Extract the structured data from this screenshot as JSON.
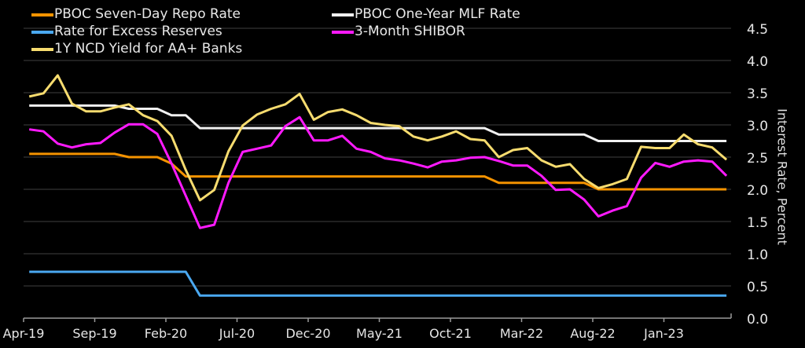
{
  "chart_data": {
    "type": "line",
    "title": "",
    "xlabel": "",
    "ylabel": "Interest Rate, Percent",
    "y_axis_side": "right",
    "ylim": [
      0,
      4.5
    ],
    "yticks": [
      "0.0",
      "0.5",
      "1.0",
      "1.5",
      "2.0",
      "2.5",
      "3.0",
      "3.5",
      "4.0",
      "4.5"
    ],
    "xtick_labels": [
      "Apr-19",
      "Sep-19",
      "Feb-20",
      "Jul-20",
      "Dec-20",
      "May-21",
      "Oct-21",
      "Mar-22",
      "Aug-22",
      "Jan-23"
    ],
    "grid": "horizontal",
    "legend_position": "top",
    "background": "#000000",
    "x": [
      "Apr-19",
      "May-19",
      "Jun-19",
      "Jul-19",
      "Aug-19",
      "Sep-19",
      "Oct-19",
      "Nov-19",
      "Dec-19",
      "Jan-20",
      "Feb-20",
      "Mar-20",
      "Apr-20",
      "May-20",
      "Jun-20",
      "Jul-20",
      "Aug-20",
      "Sep-20",
      "Oct-20",
      "Nov-20",
      "Dec-20",
      "Jan-21",
      "Feb-21",
      "Mar-21",
      "Apr-21",
      "May-21",
      "Jun-21",
      "Jul-21",
      "Aug-21",
      "Sep-21",
      "Oct-21",
      "Nov-21",
      "Dec-21",
      "Jan-22",
      "Feb-22",
      "Mar-22",
      "Apr-22",
      "May-22",
      "Jun-22",
      "Jul-22",
      "Aug-22",
      "Sep-22",
      "Oct-22",
      "Nov-22",
      "Dec-22",
      "Jan-23",
      "Feb-23",
      "Mar-23",
      "Apr-23",
      "May-23"
    ],
    "series": [
      {
        "name": "PBOC Seven-Day Repo Rate",
        "color": "#f59300",
        "values": [
          2.55,
          2.55,
          2.55,
          2.55,
          2.55,
          2.55,
          2.55,
          2.5,
          2.5,
          2.5,
          2.4,
          2.2,
          2.2,
          2.2,
          2.2,
          2.2,
          2.2,
          2.2,
          2.2,
          2.2,
          2.2,
          2.2,
          2.2,
          2.2,
          2.2,
          2.2,
          2.2,
          2.2,
          2.2,
          2.2,
          2.2,
          2.2,
          2.2,
          2.1,
          2.1,
          2.1,
          2.1,
          2.1,
          2.1,
          2.1,
          2.0,
          2.0,
          2.0,
          2.0,
          2.0,
          2.0,
          2.0,
          2.0,
          2.0,
          2.0
        ]
      },
      {
        "name": "PBOC One-Year MLF Rate",
        "color": "#f0f0f0",
        "values": [
          3.3,
          3.3,
          3.3,
          3.3,
          3.3,
          3.3,
          3.3,
          3.25,
          3.25,
          3.25,
          3.15,
          3.15,
          2.95,
          2.95,
          2.95,
          2.95,
          2.95,
          2.95,
          2.95,
          2.95,
          2.95,
          2.95,
          2.95,
          2.95,
          2.95,
          2.95,
          2.95,
          2.95,
          2.95,
          2.95,
          2.95,
          2.95,
          2.95,
          2.85,
          2.85,
          2.85,
          2.85,
          2.85,
          2.85,
          2.85,
          2.75,
          2.75,
          2.75,
          2.75,
          2.75,
          2.75,
          2.75,
          2.75,
          2.75,
          2.75
        ]
      },
      {
        "name": "Rate for Excess Reserves",
        "color": "#4aa8f0",
        "values": [
          0.72,
          0.72,
          0.72,
          0.72,
          0.72,
          0.72,
          0.72,
          0.72,
          0.72,
          0.72,
          0.72,
          0.72,
          0.35,
          0.35,
          0.35,
          0.35,
          0.35,
          0.35,
          0.35,
          0.35,
          0.35,
          0.35,
          0.35,
          0.35,
          0.35,
          0.35,
          0.35,
          0.35,
          0.35,
          0.35,
          0.35,
          0.35,
          0.35,
          0.35,
          0.35,
          0.35,
          0.35,
          0.35,
          0.35,
          0.35,
          0.35,
          0.35,
          0.35,
          0.35,
          0.35,
          0.35,
          0.35,
          0.35,
          0.35,
          0.35
        ]
      },
      {
        "name": "3-Month SHIBOR",
        "color": "#ff1aff",
        "values": [
          2.93,
          2.9,
          2.71,
          2.65,
          2.7,
          2.72,
          2.88,
          3.01,
          3.01,
          2.86,
          2.4,
          1.9,
          1.4,
          1.45,
          2.1,
          2.58,
          2.63,
          2.68,
          2.98,
          3.12,
          2.76,
          2.76,
          2.83,
          2.63,
          2.58,
          2.48,
          2.45,
          2.4,
          2.34,
          2.43,
          2.45,
          2.49,
          2.5,
          2.44,
          2.37,
          2.37,
          2.21,
          1.99,
          2.0,
          1.84,
          1.58,
          1.67,
          1.74,
          2.18,
          2.41,
          2.35,
          2.43,
          2.45,
          2.43,
          2.21
        ]
      },
      {
        "name": "1Y NCD Yield for AA+ Banks",
        "color": "#f7dc6f",
        "values": [
          3.44,
          3.49,
          3.77,
          3.33,
          3.21,
          3.21,
          3.27,
          3.32,
          3.15,
          3.06,
          2.83,
          2.3,
          1.83,
          1.99,
          2.59,
          2.99,
          3.16,
          3.25,
          3.32,
          3.48,
          3.08,
          3.2,
          3.24,
          3.15,
          3.03,
          3.0,
          2.98,
          2.82,
          2.76,
          2.82,
          2.9,
          2.78,
          2.76,
          2.5,
          2.61,
          2.64,
          2.45,
          2.35,
          2.39,
          2.16,
          2.02,
          2.08,
          2.16,
          2.66,
          2.64,
          2.64,
          2.85,
          2.7,
          2.65,
          2.46
        ]
      }
    ]
  }
}
